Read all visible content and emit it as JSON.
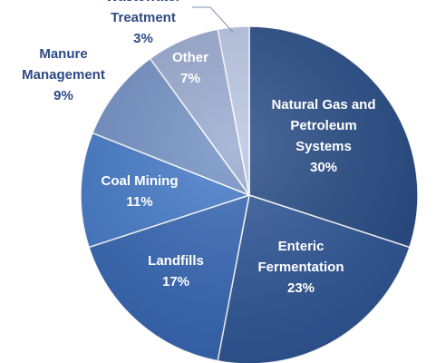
{
  "chart_data": {
    "type": "pie",
    "categories": [
      "Natural Gas and Petroleum Systems",
      "Enteric Fermentation",
      "Landfills",
      "Coal Mining",
      "Manure Management",
      "Other",
      "Wastewater Treatment"
    ],
    "values": [
      30,
      23,
      17,
      11,
      9,
      7,
      3
    ],
    "slices": [
      {
        "name": "Natural Gas and Petroleum Systems",
        "value": 30,
        "name_lines": [
          "Natural Gas and",
          "Petroleum",
          "Systems"
        ],
        "pct": "30%",
        "color": "#254a85",
        "label_color": "#ffffff",
        "label_pos": "inside"
      },
      {
        "name": "Enteric Fermentation",
        "value": 23,
        "name_lines": [
          "Enteric",
          "Fermentation"
        ],
        "pct": "23%",
        "color": "#2d5597",
        "label_color": "#ffffff",
        "label_pos": "inside"
      },
      {
        "name": "Landfills",
        "value": 17,
        "name_lines": [
          "Landfills"
        ],
        "pct": "17%",
        "color": "#3466b5",
        "label_color": "#ffffff",
        "label_pos": "inside"
      },
      {
        "name": "Coal Mining",
        "value": 11,
        "name_lines": [
          "Coal Mining"
        ],
        "pct": "11%",
        "color": "#4279c9",
        "label_color": "#ffffff",
        "label_pos": "inside"
      },
      {
        "name": "Manure Management",
        "value": 9,
        "name_lines": [
          "Manure",
          "Management"
        ],
        "pct": "9%",
        "color": "#7190c5",
        "label_color": "#2e4a86",
        "label_pos": "outside"
      },
      {
        "name": "Other",
        "value": 7,
        "name_lines": [
          "Other"
        ],
        "pct": "7%",
        "color": "#97a9d0",
        "label_color": "#ffffff",
        "label_pos": "inside"
      },
      {
        "name": "Wastewater Treatment",
        "value": 3,
        "name_lines": [
          "Wastewater",
          "Treatment"
        ],
        "pct": "3%",
        "color": "#b8c5e3",
        "label_color": "#2e4a86",
        "label_pos": "outside"
      }
    ],
    "start_angle_deg": 0,
    "direction": "clockwise",
    "title": "",
    "legend": "none"
  }
}
